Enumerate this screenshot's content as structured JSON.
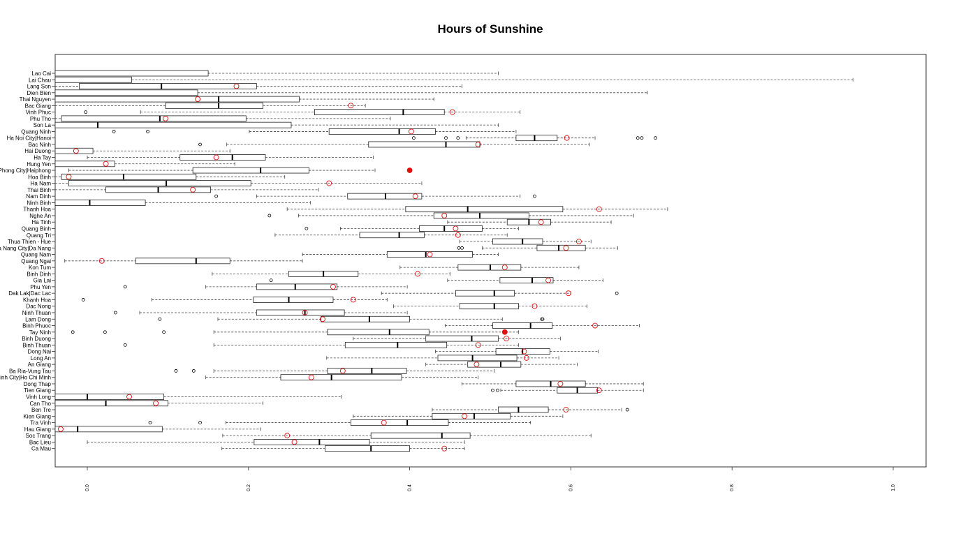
{
  "chart_data": {
    "type": "boxplot",
    "title": "Hours of Sunshine",
    "orientation": "horizontal",
    "xlim": [
      -0.04,
      1.04
    ],
    "x_ticks": [
      0.0,
      0.2,
      0.4,
      0.6,
      0.8,
      1.0
    ],
    "x_tick_labels": [
      "0.0",
      "0.2",
      "0.4",
      "0.6",
      "0.8",
      "1.0"
    ],
    "grid": false,
    "colors": {
      "box": "#000000",
      "median": "#000000",
      "observed": "#e01010",
      "outlier": "#000000"
    },
    "categories": [
      "Lao Cai",
      "Lai Chau",
      "Lang Son",
      "Dien Bien",
      "Thai Nguyen",
      "Bac Giang",
      "Vinh Phuc",
      "Phu Tho",
      "Son La",
      "Quang Ninh",
      "Ha Noi City|Hanoi",
      "Bac Ninh",
      "Hai Duong",
      "Ha Tay",
      "Hung Yen",
      "Hai Phong City|Haiphong",
      "Hoa Binh",
      "Ha Nam",
      "Thai Binh",
      "Nam Dinh",
      "Ninh Binh",
      "Thanh Hoa",
      "Nghe An",
      "Ha Tinh",
      "Quang Binh",
      "Quang Tri",
      "Thua Thien - Hue",
      "Da Nang City|Da Nang",
      "Quang Nam",
      "Quang Ngai",
      "Kon Tum",
      "Binh Dinh",
      "Gia Lai",
      "Phu Yen",
      "Dak Lak|Dac Lac",
      "Khanh Hoa",
      "Dac Nong",
      "Ninh Thuan",
      "Lam Dong",
      "Binh Phuoc",
      "Tay Ninh",
      "Binh Duong",
      "Binh Thuan",
      "Dong Nai",
      "Long An",
      "An Giang",
      "Ba Ria-Vung Tau",
      "Ho Chi Minh City|Ho Chi Minh",
      "Dong Thap",
      "Tien Giang",
      "Vinh Long",
      "Can Tho",
      "Ben Tre",
      "Kien Giang",
      "Tra Vinh",
      "Hau Giang",
      "Soc Trang",
      "Bac Lieu",
      "Ca Mau"
    ],
    "boxes": [
      {
        "wl": -0.05,
        "q1": -0.05,
        "med": -0.05,
        "q3": 0.15,
        "wh": 0.51,
        "out": [],
        "obs": null,
        "filled": false
      },
      {
        "wl": -0.05,
        "q1": -0.05,
        "med": -0.05,
        "q3": 0.055,
        "wh": 0.95,
        "out": [],
        "obs": null,
        "filled": false
      },
      {
        "wl": -0.05,
        "q1": -0.01,
        "med": 0.092,
        "q3": 0.21,
        "wh": 0.465,
        "out": [],
        "obs": 0.185,
        "filled": false
      },
      {
        "wl": -0.05,
        "q1": -0.05,
        "med": -0.05,
        "q3": 0.137,
        "wh": 0.695,
        "out": [],
        "obs": null,
        "filled": false
      },
      {
        "wl": -0.05,
        "q1": -0.05,
        "med": 0.163,
        "q3": 0.263,
        "wh": 0.43,
        "out": [],
        "obs": 0.137,
        "filled": false
      },
      {
        "wl": -0.05,
        "q1": 0.097,
        "med": 0.163,
        "q3": 0.218,
        "wh": 0.345,
        "out": [],
        "obs": 0.327,
        "filled": false
      },
      {
        "wl": 0.066,
        "q1": 0.282,
        "med": 0.392,
        "q3": 0.443,
        "wh": 0.537,
        "out": [
          -0.002
        ],
        "obs": 0.453,
        "filled": false
      },
      {
        "wl": -0.05,
        "q1": -0.032,
        "med": 0.09,
        "q3": 0.197,
        "wh": 0.376,
        "out": [],
        "obs": 0.097,
        "filled": false
      },
      {
        "wl": -0.05,
        "q1": -0.05,
        "med": 0.013,
        "q3": 0.253,
        "wh": 0.51,
        "out": [],
        "obs": null,
        "filled": false
      },
      {
        "wl": 0.201,
        "q1": 0.3,
        "med": 0.387,
        "q3": 0.432,
        "wh": 0.532,
        "out": [
          0.033,
          0.075
        ],
        "obs": 0.402,
        "filled": false
      },
      {
        "wl": 0.47,
        "q1": 0.532,
        "med": 0.555,
        "q3": 0.583,
        "wh": 0.63,
        "out": [
          0.405,
          0.445,
          0.46,
          0.683,
          0.688,
          0.705
        ],
        "obs": 0.595,
        "filled": false
      },
      {
        "wl": 0.173,
        "q1": 0.349,
        "med": 0.445,
        "q3": 0.487,
        "wh": 0.623,
        "out": [
          0.14
        ],
        "obs": 0.485,
        "filled": false
      },
      {
        "wl": -0.05,
        "q1": -0.05,
        "med": -0.05,
        "q3": 0.007,
        "wh": 0.177,
        "out": [],
        "obs": -0.014,
        "filled": false
      },
      {
        "wl": 0.0,
        "q1": 0.115,
        "med": 0.18,
        "q3": 0.221,
        "wh": 0.355,
        "out": [],
        "obs": 0.16,
        "filled": false
      },
      {
        "wl": -0.05,
        "q1": -0.05,
        "med": -0.05,
        "q3": 0.034,
        "wh": 0.183,
        "out": [],
        "obs": 0.023,
        "filled": false
      },
      {
        "wl": -0.023,
        "q1": 0.131,
        "med": 0.215,
        "q3": 0.275,
        "wh": 0.357,
        "out": [],
        "obs": 0.4,
        "filled": true
      },
      {
        "wl": -0.05,
        "q1": -0.032,
        "med": 0.045,
        "q3": 0.135,
        "wh": 0.245,
        "out": [],
        "obs": -0.023,
        "filled": false
      },
      {
        "wl": -0.05,
        "q1": -0.023,
        "med": 0.098,
        "q3": 0.203,
        "wh": 0.415,
        "out": [],
        "obs": 0.3,
        "filled": false
      },
      {
        "wl": -0.05,
        "q1": 0.023,
        "med": 0.088,
        "q3": 0.153,
        "wh": 0.287,
        "out": [],
        "obs": 0.131,
        "filled": false
      },
      {
        "wl": 0.21,
        "q1": 0.323,
        "med": 0.37,
        "q3": 0.415,
        "wh": 0.537,
        "out": [
          0.16,
          0.555
        ],
        "obs": 0.407,
        "filled": false
      },
      {
        "wl": -0.05,
        "q1": -0.05,
        "med": 0.003,
        "q3": 0.072,
        "wh": 0.277,
        "out": [],
        "obs": null,
        "filled": false
      },
      {
        "wl": 0.248,
        "q1": 0.395,
        "med": 0.472,
        "q3": 0.59,
        "wh": 0.72,
        "out": [],
        "obs": 0.635,
        "filled": false
      },
      {
        "wl": 0.262,
        "q1": 0.43,
        "med": 0.487,
        "q3": 0.548,
        "wh": 0.678,
        "out": [
          0.226
        ],
        "obs": 0.443,
        "filled": false
      },
      {
        "wl": 0.447,
        "q1": 0.521,
        "med": 0.548,
        "q3": 0.575,
        "wh": 0.65,
        "out": [],
        "obs": 0.563,
        "filled": false
      },
      {
        "wl": 0.314,
        "q1": 0.412,
        "med": 0.443,
        "q3": 0.49,
        "wh": 0.535,
        "out": [
          0.272
        ],
        "obs": 0.457,
        "filled": false
      },
      {
        "wl": 0.233,
        "q1": 0.338,
        "med": 0.387,
        "q3": 0.418,
        "wh": 0.521,
        "out": [],
        "obs": 0.46,
        "filled": false
      },
      {
        "wl": 0.462,
        "q1": 0.503,
        "med": 0.54,
        "q3": 0.565,
        "wh": 0.625,
        "out": [],
        "obs": 0.61,
        "filled": false
      },
      {
        "wl": 0.49,
        "q1": 0.558,
        "med": 0.585,
        "q3": 0.618,
        "wh": 0.658,
        "out": [
          0.461,
          0.465
        ],
        "obs": 0.594,
        "filled": false
      },
      {
        "wl": 0.267,
        "q1": 0.372,
        "med": 0.42,
        "q3": 0.478,
        "wh": 0.51,
        "out": [],
        "obs": 0.425,
        "filled": false
      },
      {
        "wl": -0.028,
        "q1": 0.06,
        "med": 0.135,
        "q3": 0.177,
        "wh": 0.267,
        "out": [],
        "obs": 0.018,
        "filled": false
      },
      {
        "wl": 0.388,
        "q1": 0.46,
        "med": 0.5,
        "q3": 0.538,
        "wh": 0.61,
        "out": [],
        "obs": 0.518,
        "filled": false
      },
      {
        "wl": 0.155,
        "q1": 0.25,
        "med": 0.293,
        "q3": 0.336,
        "wh": 0.45,
        "out": [],
        "obs": 0.41,
        "filled": false
      },
      {
        "wl": 0.447,
        "q1": 0.512,
        "med": 0.552,
        "q3": 0.578,
        "wh": 0.64,
        "out": [
          0.228
        ],
        "obs": 0.572,
        "filled": false
      },
      {
        "wl": 0.147,
        "q1": 0.21,
        "med": 0.258,
        "q3": 0.31,
        "wh": 0.397,
        "out": [
          0.047
        ],
        "obs": 0.305,
        "filled": false
      },
      {
        "wl": 0.365,
        "q1": 0.457,
        "med": 0.505,
        "q3": 0.53,
        "wh": 0.6,
        "out": [
          0.657
        ],
        "obs": 0.597,
        "filled": false
      },
      {
        "wl": 0.08,
        "q1": 0.206,
        "med": 0.25,
        "q3": 0.305,
        "wh": 0.372,
        "out": [
          -0.005
        ],
        "obs": 0.33,
        "filled": false
      },
      {
        "wl": 0.38,
        "q1": 0.462,
        "med": 0.505,
        "q3": 0.535,
        "wh": 0.62,
        "out": [],
        "obs": 0.555,
        "filled": false
      },
      {
        "wl": 0.065,
        "q1": 0.21,
        "med": 0.27,
        "q3": 0.319,
        "wh": 0.397,
        "out": [
          0.035
        ],
        "obs": 0.27,
        "filled": false
      },
      {
        "wl": 0.162,
        "q1": 0.29,
        "med": 0.35,
        "q3": 0.4,
        "wh": 0.515,
        "out": [
          0.09,
          0.564,
          0.565
        ],
        "obs": 0.292,
        "filled": false
      },
      {
        "wl": 0.444,
        "q1": 0.503,
        "med": 0.55,
        "q3": 0.577,
        "wh": 0.685,
        "out": [],
        "obs": 0.63,
        "filled": false
      },
      {
        "wl": 0.157,
        "q1": 0.298,
        "med": 0.375,
        "q3": 0.424,
        "wh": 0.535,
        "out": [
          -0.018,
          0.022,
          0.095
        ],
        "obs": 0.518,
        "filled": true
      },
      {
        "wl": 0.33,
        "q1": 0.42,
        "med": 0.477,
        "q3": 0.51,
        "wh": 0.587,
        "out": [],
        "obs": 0.52,
        "filled": false
      },
      {
        "wl": 0.157,
        "q1": 0.32,
        "med": 0.385,
        "q3": 0.446,
        "wh": 0.535,
        "out": [
          0.047
        ],
        "obs": 0.485,
        "filled": false
      },
      {
        "wl": 0.432,
        "q1": 0.507,
        "med": 0.54,
        "q3": 0.574,
        "wh": 0.634,
        "out": [],
        "obs": 0.542,
        "filled": false
      },
      {
        "wl": 0.297,
        "q1": 0.435,
        "med": 0.478,
        "q3": 0.533,
        "wh": 0.585,
        "out": [],
        "obs": 0.545,
        "filled": false
      },
      {
        "wl": 0.42,
        "q1": 0.472,
        "med": 0.513,
        "q3": 0.538,
        "wh": 0.608,
        "out": [],
        "obs": 0.483,
        "filled": false
      },
      {
        "wl": 0.157,
        "q1": 0.298,
        "med": 0.353,
        "q3": 0.396,
        "wh": 0.505,
        "out": [
          0.11,
          0.132
        ],
        "obs": 0.317,
        "filled": false
      },
      {
        "wl": 0.147,
        "q1": 0.24,
        "med": 0.303,
        "q3": 0.39,
        "wh": 0.485,
        "out": [],
        "obs": 0.278,
        "filled": false
      },
      {
        "wl": 0.465,
        "q1": 0.532,
        "med": 0.575,
        "q3": 0.618,
        "wh": 0.69,
        "out": [],
        "obs": 0.587,
        "filled": false
      },
      {
        "wl": 0.513,
        "q1": 0.583,
        "med": 0.608,
        "q3": 0.633,
        "wh": 0.69,
        "out": [
          0.503,
          0.509
        ],
        "obs": 0.635,
        "filled": false
      },
      {
        "wl": -0.05,
        "q1": -0.05,
        "med": 0.0,
        "q3": 0.095,
        "wh": 0.315,
        "out": [],
        "obs": 0.052,
        "filled": false
      },
      {
        "wl": -0.05,
        "q1": -0.05,
        "med": 0.023,
        "q3": 0.1,
        "wh": 0.218,
        "out": [],
        "obs": 0.085,
        "filled": false
      },
      {
        "wl": 0.428,
        "q1": 0.51,
        "med": 0.535,
        "q3": 0.572,
        "wh": 0.663,
        "out": [
          0.67
        ],
        "obs": 0.594,
        "filled": false
      },
      {
        "wl": 0.33,
        "q1": 0.428,
        "med": 0.48,
        "q3": 0.525,
        "wh": 0.59,
        "out": [],
        "obs": 0.468,
        "filled": false
      },
      {
        "wl": 0.172,
        "q1": 0.327,
        "med": 0.397,
        "q3": 0.448,
        "wh": 0.55,
        "out": [
          0.078,
          0.14
        ],
        "obs": 0.368,
        "filled": false
      },
      {
        "wl": -0.05,
        "q1": -0.05,
        "med": -0.012,
        "q3": 0.093,
        "wh": 0.215,
        "out": [],
        "obs": -0.033,
        "filled": false
      },
      {
        "wl": 0.168,
        "q1": 0.352,
        "med": 0.44,
        "q3": 0.475,
        "wh": 0.625,
        "out": [],
        "obs": 0.248,
        "filled": false
      },
      {
        "wl": 0.0,
        "q1": 0.207,
        "med": 0.288,
        "q3": 0.35,
        "wh": 0.468,
        "out": [],
        "obs": 0.257,
        "filled": false
      },
      {
        "wl": 0.167,
        "q1": 0.295,
        "med": 0.352,
        "q3": 0.4,
        "wh": 0.468,
        "out": [],
        "obs": 0.443,
        "filled": false
      }
    ]
  }
}
